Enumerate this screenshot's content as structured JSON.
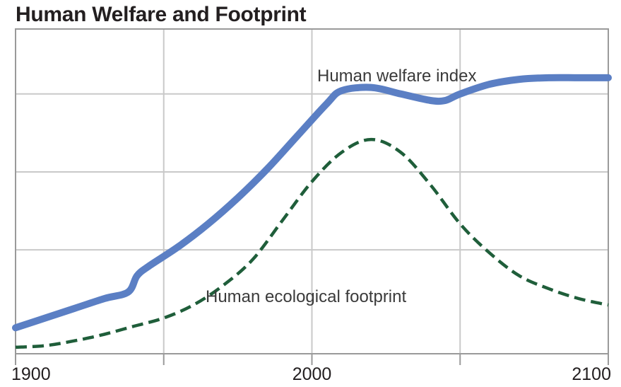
{
  "chart_data": {
    "type": "line",
    "title": "Human Welfare and Footprint",
    "xlabel": "",
    "ylabel": "",
    "xlim": [
      1900,
      2100
    ],
    "ylim": [
      0,
      10
    ],
    "grid": true,
    "x_ticks": [
      {
        "value": 1900,
        "label": "1900"
      },
      {
        "value": 2000,
        "label": "2000"
      },
      {
        "value": 2100,
        "label": "2100"
      }
    ],
    "series": [
      {
        "name": "Human welfare index",
        "color": "#5b7fc4",
        "style": "solid",
        "x": [
          1900,
          1910,
          1920,
          1930,
          1938,
          1941,
          1945,
          1955,
          1965,
          1975,
          1985,
          1995,
          2005,
          2010,
          2020,
          2030,
          2040,
          2045,
          2050,
          2060,
          2070,
          2080,
          2090,
          2100
        ],
        "y": [
          0.8,
          1.1,
          1.4,
          1.7,
          1.9,
          2.4,
          2.7,
          3.3,
          4.0,
          4.8,
          5.7,
          6.7,
          7.7,
          8.1,
          8.2,
          8.0,
          7.8,
          7.8,
          8.0,
          8.3,
          8.45,
          8.5,
          8.5,
          8.5
        ]
      },
      {
        "name": "Human ecological footprint",
        "color": "#1f5e3a",
        "style": "dashed",
        "x": [
          1900,
          1910,
          1920,
          1930,
          1940,
          1950,
          1960,
          1970,
          1980,
          1990,
          2000,
          2010,
          2020,
          2030,
          2040,
          2050,
          2060,
          2070,
          2080,
          2090,
          2100
        ],
        "y": [
          0.2,
          0.25,
          0.4,
          0.6,
          0.85,
          1.1,
          1.5,
          2.1,
          2.9,
          4.1,
          5.3,
          6.2,
          6.6,
          6.2,
          5.2,
          4.0,
          3.1,
          2.4,
          2.0,
          1.7,
          1.5
        ]
      }
    ],
    "annotations": [
      {
        "text": "Human welfare index"
      },
      {
        "text": "Human ecological footprint"
      }
    ]
  }
}
